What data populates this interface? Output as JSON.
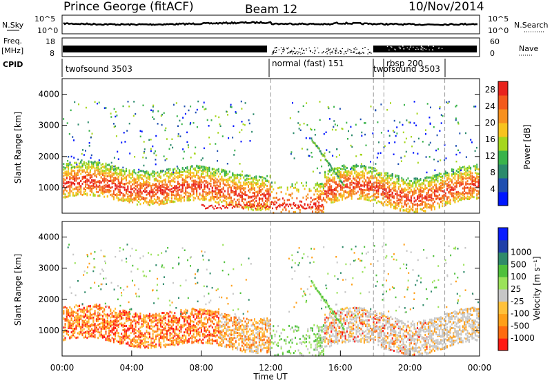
{
  "header": {
    "station": "Prince George (fitACF)",
    "beam": "Beam 12",
    "date": "10/Nov/2014"
  },
  "left_labels": {
    "nsky": "N.Sky",
    "freq": "Freq.",
    "freq_unit": "[MHz]",
    "cpid": "CPID"
  },
  "right_labels": {
    "nsearch": "N.Search",
    "nave": "Nave"
  },
  "noise_panel": {
    "left_ticks": [
      "10^5",
      "10^0"
    ],
    "right_ticks": [
      "10^5",
      "10^0"
    ]
  },
  "freq_panel": {
    "left_ticks": [
      "18",
      "8"
    ],
    "right_ticks": [
      "60",
      "0"
    ]
  },
  "cpid_labels": [
    {
      "text": "twofsound 3503"
    },
    {
      "text": "normal (fast) 151"
    },
    {
      "text": "rbsp 200"
    },
    {
      "text": "twofsound 3503"
    }
  ],
  "colors": {
    "power": [
      "#0016ff",
      "#1f4fb0",
      "#2b8a6b",
      "#39b34a",
      "#a5d61c",
      "#f7c31d",
      "#f7901e",
      "#f35a1c",
      "#e8231c"
    ],
    "velocity": [
      "#ff1a14",
      "#ff6b10",
      "#ff9f19",
      "#ffc13b",
      "#c6c6c6",
      "#9be25a",
      "#4fc03c",
      "#2f8a6a",
      "#1f3fa8",
      "#0a1dff"
    ]
  },
  "chart_data": [
    {
      "type": "heatmap",
      "name": "power",
      "ylabel": "Slant Range [km]",
      "yticks": [
        "1000",
        "2000",
        "3000",
        "4000"
      ],
      "ylim": [
        180,
        4500
      ],
      "colorbar_label": "Power [dB]",
      "colorbar_ticks": [
        "4",
        "8",
        "12",
        "16",
        "20",
        "24",
        "28"
      ],
      "colorbar_range": [
        0,
        30
      ]
    },
    {
      "type": "heatmap",
      "name": "velocity",
      "xlabel": "Time UT",
      "ylabel": "Slant Range [km]",
      "xticks": [
        "00:00",
        "04:00",
        "08:00",
        "12:00",
        "16:00",
        "20:00",
        "00:00"
      ],
      "xlim": [
        0,
        24
      ],
      "yticks": [
        "1000",
        "2000",
        "3000",
        "4000"
      ],
      "ylim": [
        180,
        4500
      ],
      "colorbar_label": "Velocity [m s⁻¹]",
      "colorbar_ticks": [
        "-1000",
        "-500",
        "-100",
        "-25",
        "25",
        "100",
        "500",
        "1000"
      ],
      "vline_times": [
        12.0,
        17.9,
        18.5,
        22.0
      ]
    }
  ]
}
